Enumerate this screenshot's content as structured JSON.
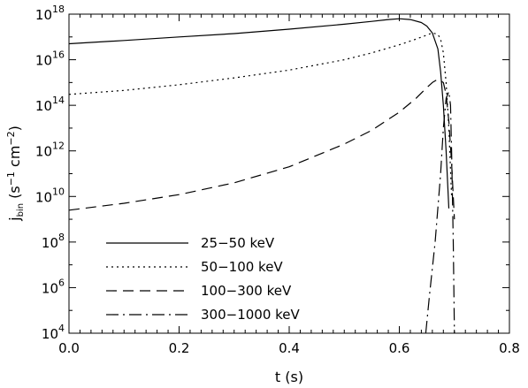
{
  "chart_data": {
    "type": "line",
    "xlabel": "t (s)",
    "ylabel": {
      "base": "j",
      "subscript": "bin",
      "units_prefix": " (s",
      "exp1": "−1",
      "units_mid": " cm",
      "exp2": "−2",
      "units_suffix": ")"
    },
    "xlim": [
      0.0,
      0.8
    ],
    "ylim": [
      10000,
      1e+18
    ],
    "yscale": "log",
    "xticks": [
      0.0,
      0.2,
      0.4,
      0.6,
      0.8
    ],
    "xtick_labels": [
      "0.0",
      "0.2",
      "0.4",
      "0.6",
      "0.8"
    ],
    "yticks": [
      4,
      6,
      8,
      10,
      12,
      14,
      16,
      18
    ],
    "ytick_base": "10",
    "ytick_exps": [
      "4",
      "6",
      "8",
      "10",
      "12",
      "14",
      "16",
      "18"
    ],
    "legend_position": "lower-left",
    "series": [
      {
        "name": "25−50 keV",
        "style": "solid",
        "x": [
          0.0,
          0.1,
          0.2,
          0.3,
          0.4,
          0.5,
          0.55,
          0.58,
          0.6,
          0.62,
          0.64,
          0.65,
          0.66,
          0.67,
          0.675,
          0.68,
          0.685,
          0.69
        ],
        "y": [
          5e+16,
          7e+16,
          1e+17,
          1.4e+17,
          2.2e+17,
          3.6e+17,
          4.8e+17,
          5.8e+17,
          6.3e+17,
          5.8e+17,
          4.3e+17,
          3e+17,
          1.5e+17,
          3e+16,
          3000000000000000.0,
          100000000000000.0,
          1000000000000.0,
          3000000000.0
        ]
      },
      {
        "name": "50−100 keV",
        "style": "dotted",
        "x": [
          0.0,
          0.1,
          0.2,
          0.3,
          0.4,
          0.5,
          0.55,
          0.6,
          0.63,
          0.65,
          0.66,
          0.67,
          0.675,
          0.68,
          0.685,
          0.69,
          0.695
        ],
        "y": [
          300000000000000.0,
          450000000000000.0,
          800000000000000.0,
          1600000000000000.0,
          3500000000000000.0,
          1e+16,
          2e+16,
          4.5e+16,
          8e+16,
          1.2e+17,
          1.5e+17,
          1.3e+17,
          8e+16,
          2e+16,
          1000000000000000.0,
          10000000000000.0,
          10000000000.0
        ]
      },
      {
        "name": "100−300 keV",
        "style": "dashed",
        "x": [
          0.0,
          0.1,
          0.2,
          0.3,
          0.4,
          0.5,
          0.55,
          0.6,
          0.63,
          0.65,
          0.66,
          0.67,
          0.68,
          0.685,
          0.69,
          0.695,
          0.7
        ],
        "y": [
          2500000000.0,
          5000000000.0,
          12000000000.0,
          40000000000.0,
          200000000000.0,
          2000000000000.0,
          8000000000000.0,
          50000000000000.0,
          200000000000000.0,
          600000000000000.0,
          1000000000000000.0,
          1400000000000000.0,
          1000000000000000.0,
          300000000000000.0,
          20000000000000.0,
          300000000000.0,
          1000000000.0
        ]
      },
      {
        "name": "300−1000 keV",
        "style": "dashdot",
        "x": [
          0.648,
          0.655,
          0.665,
          0.675,
          0.68,
          0.685,
          0.69,
          0.693,
          0.695,
          0.698,
          0.7
        ],
        "y": [
          10000.0,
          500000.0,
          100000000.0,
          100000000000.0,
          10000000000000.0,
          200000000000000.0,
          400000000000000.0,
          100000000000000.0,
          1000000000000.0,
          100000000.0,
          10000.0
        ]
      }
    ]
  }
}
